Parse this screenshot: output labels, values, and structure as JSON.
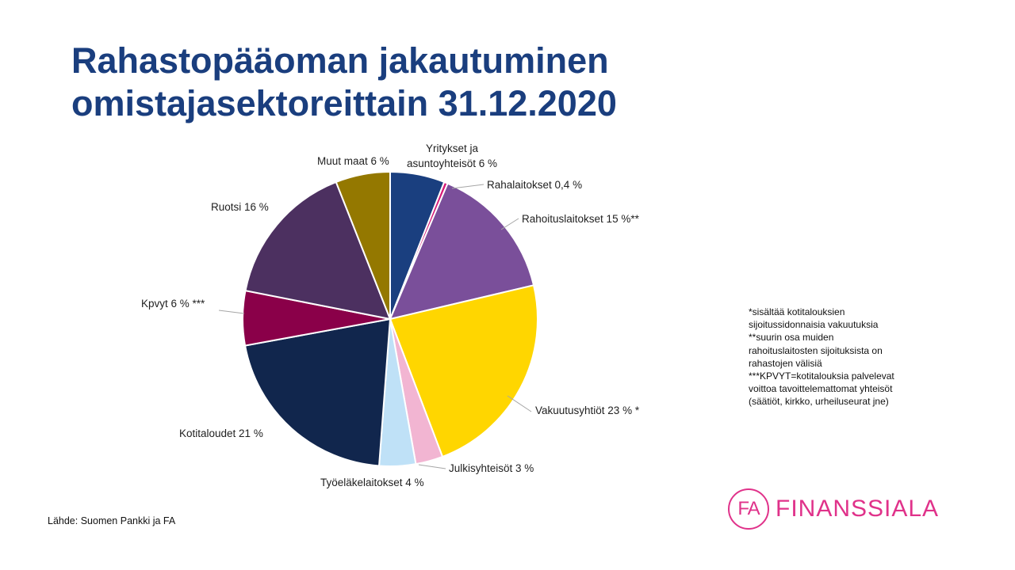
{
  "title": {
    "line1": "Rahastopääoman jakautuminen",
    "line2": "omistajasektoreittain 31.12.2020"
  },
  "chart_data": {
    "type": "pie",
    "title": "Rahastopääoman jakautuminen omistajasektoreittain 31.12.2020",
    "slices": [
      {
        "label": "Yritykset ja asuntoyhteisöt 6 %",
        "value": 6,
        "color": "#1a3f7f"
      },
      {
        "label": "Rahalaitokset 0,4 %",
        "value": 0.4,
        "color": "#d61a78"
      },
      {
        "label": "Rahoituslaitokset 15 %**",
        "value": 15,
        "color": "#7a4f9a"
      },
      {
        "label": "Vakuutusyhtiöt 23 % *",
        "value": 23,
        "color": "#ffd600"
      },
      {
        "label": "Julkisyhteisöt 3 %",
        "value": 3,
        "color": "#f2b5d2"
      },
      {
        "label": "Työeläkelaitokset 4 %",
        "value": 4,
        "color": "#bfe1f7"
      },
      {
        "label": "Kotitaloudet 21 %",
        "value": 21,
        "color": "#11264d"
      },
      {
        "label": "Kpvyt 6 % ***",
        "value": 6,
        "color": "#8a0049"
      },
      {
        "label": "Ruotsi 16 %",
        "value": 16,
        "color": "#4c3060"
      },
      {
        "label": "Muut maat 6 %",
        "value": 6,
        "color": "#947800"
      }
    ]
  },
  "notes": [
    "*sisältää kotitalouksien\nsijoitussidonnaisia vakuutuksia",
    "**suurin osa muiden\nrahoituslaitosten sijoituksista on\nrahastojen välisiä",
    "***KPVYT=kotitalouksia palvelevat\nvoittoa tavoittelemattomat yhteisöt\n(säätiöt, kirkko, urheiluseurat jne)"
  ],
  "source": "Lähde: Suomen  Pankki ja FA",
  "logo": {
    "mark": "FA",
    "text": "FINANSSIALA",
    "color": "#e0328a"
  }
}
